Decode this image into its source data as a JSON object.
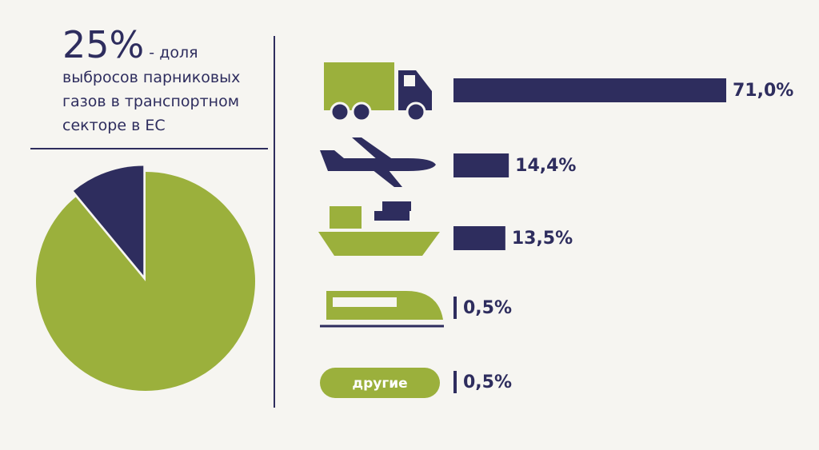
{
  "chart_data": [
    {
      "type": "pie",
      "title": "25%",
      "subtitle": "- доля выбросов парниковых газов в транспортном секторе в ЕС",
      "categories": [
        null,
        null
      ],
      "values": [
        11,
        89
      ],
      "colors": [
        "#2e2d5e",
        "#9bb03c"
      ]
    },
    {
      "type": "bar",
      "orientation": "horizontal",
      "categories": [
        null,
        null,
        null,
        null,
        "другие"
      ],
      "values": [
        71.0,
        14.4,
        13.5,
        0.5,
        0.5
      ],
      "value_labels": [
        "71,0%",
        "14,4%",
        "13,5%",
        "0,5%",
        "0,5%"
      ],
      "color": "#2e2d5e"
    }
  ]
}
